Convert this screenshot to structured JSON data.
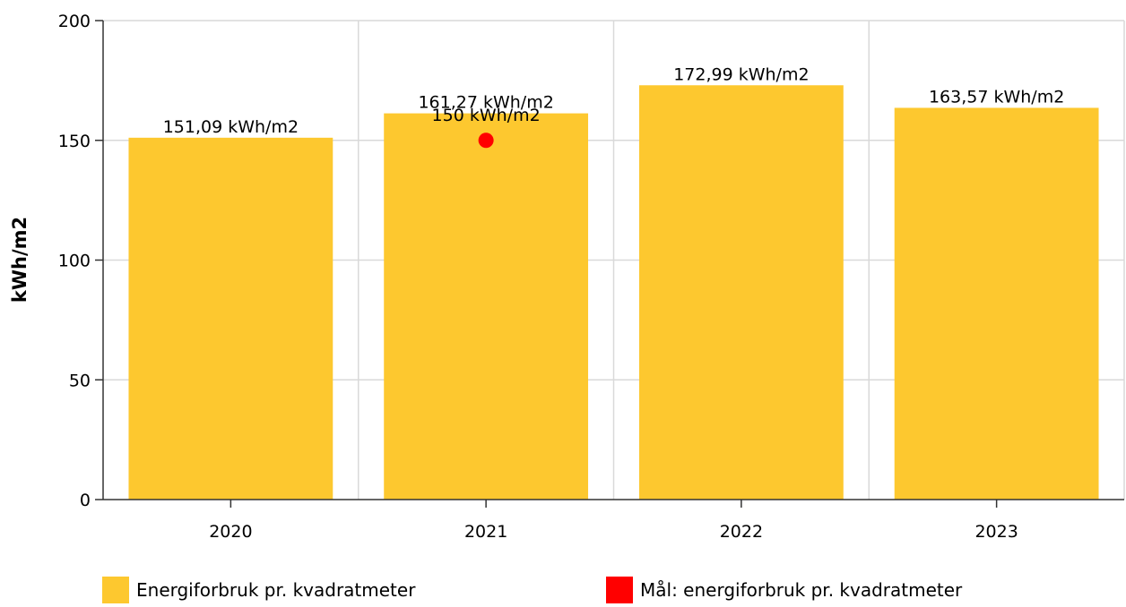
{
  "chart_data": {
    "type": "bar",
    "categories": [
      "2020",
      "2021",
      "2022",
      "2023"
    ],
    "series": [
      {
        "name": "Energiforbruk pr. kvadratmeter",
        "type": "bar",
        "color": "#FDC82F",
        "values": [
          151.09,
          161.27,
          172.99,
          163.57
        ],
        "labels": [
          "151,09 kWh/m2",
          "161,27 kWh/m2",
          "172,99 kWh/m2",
          "163,57 kWh/m2"
        ]
      },
      {
        "name": "Mål: energiforbruk pr. kvadratmeter",
        "type": "scatter",
        "color": "#FF0000",
        "values": [
          null,
          150,
          null,
          null
        ],
        "labels": [
          null,
          "150 kWh/m2",
          null,
          null
        ]
      }
    ],
    "ylabel": "kWh/m2",
    "xlabel": "",
    "ylim": [
      0,
      200
    ],
    "yticks": [
      "0",
      "50",
      "100",
      "150",
      "200"
    ],
    "grid": true,
    "legend_position": "bottom"
  }
}
